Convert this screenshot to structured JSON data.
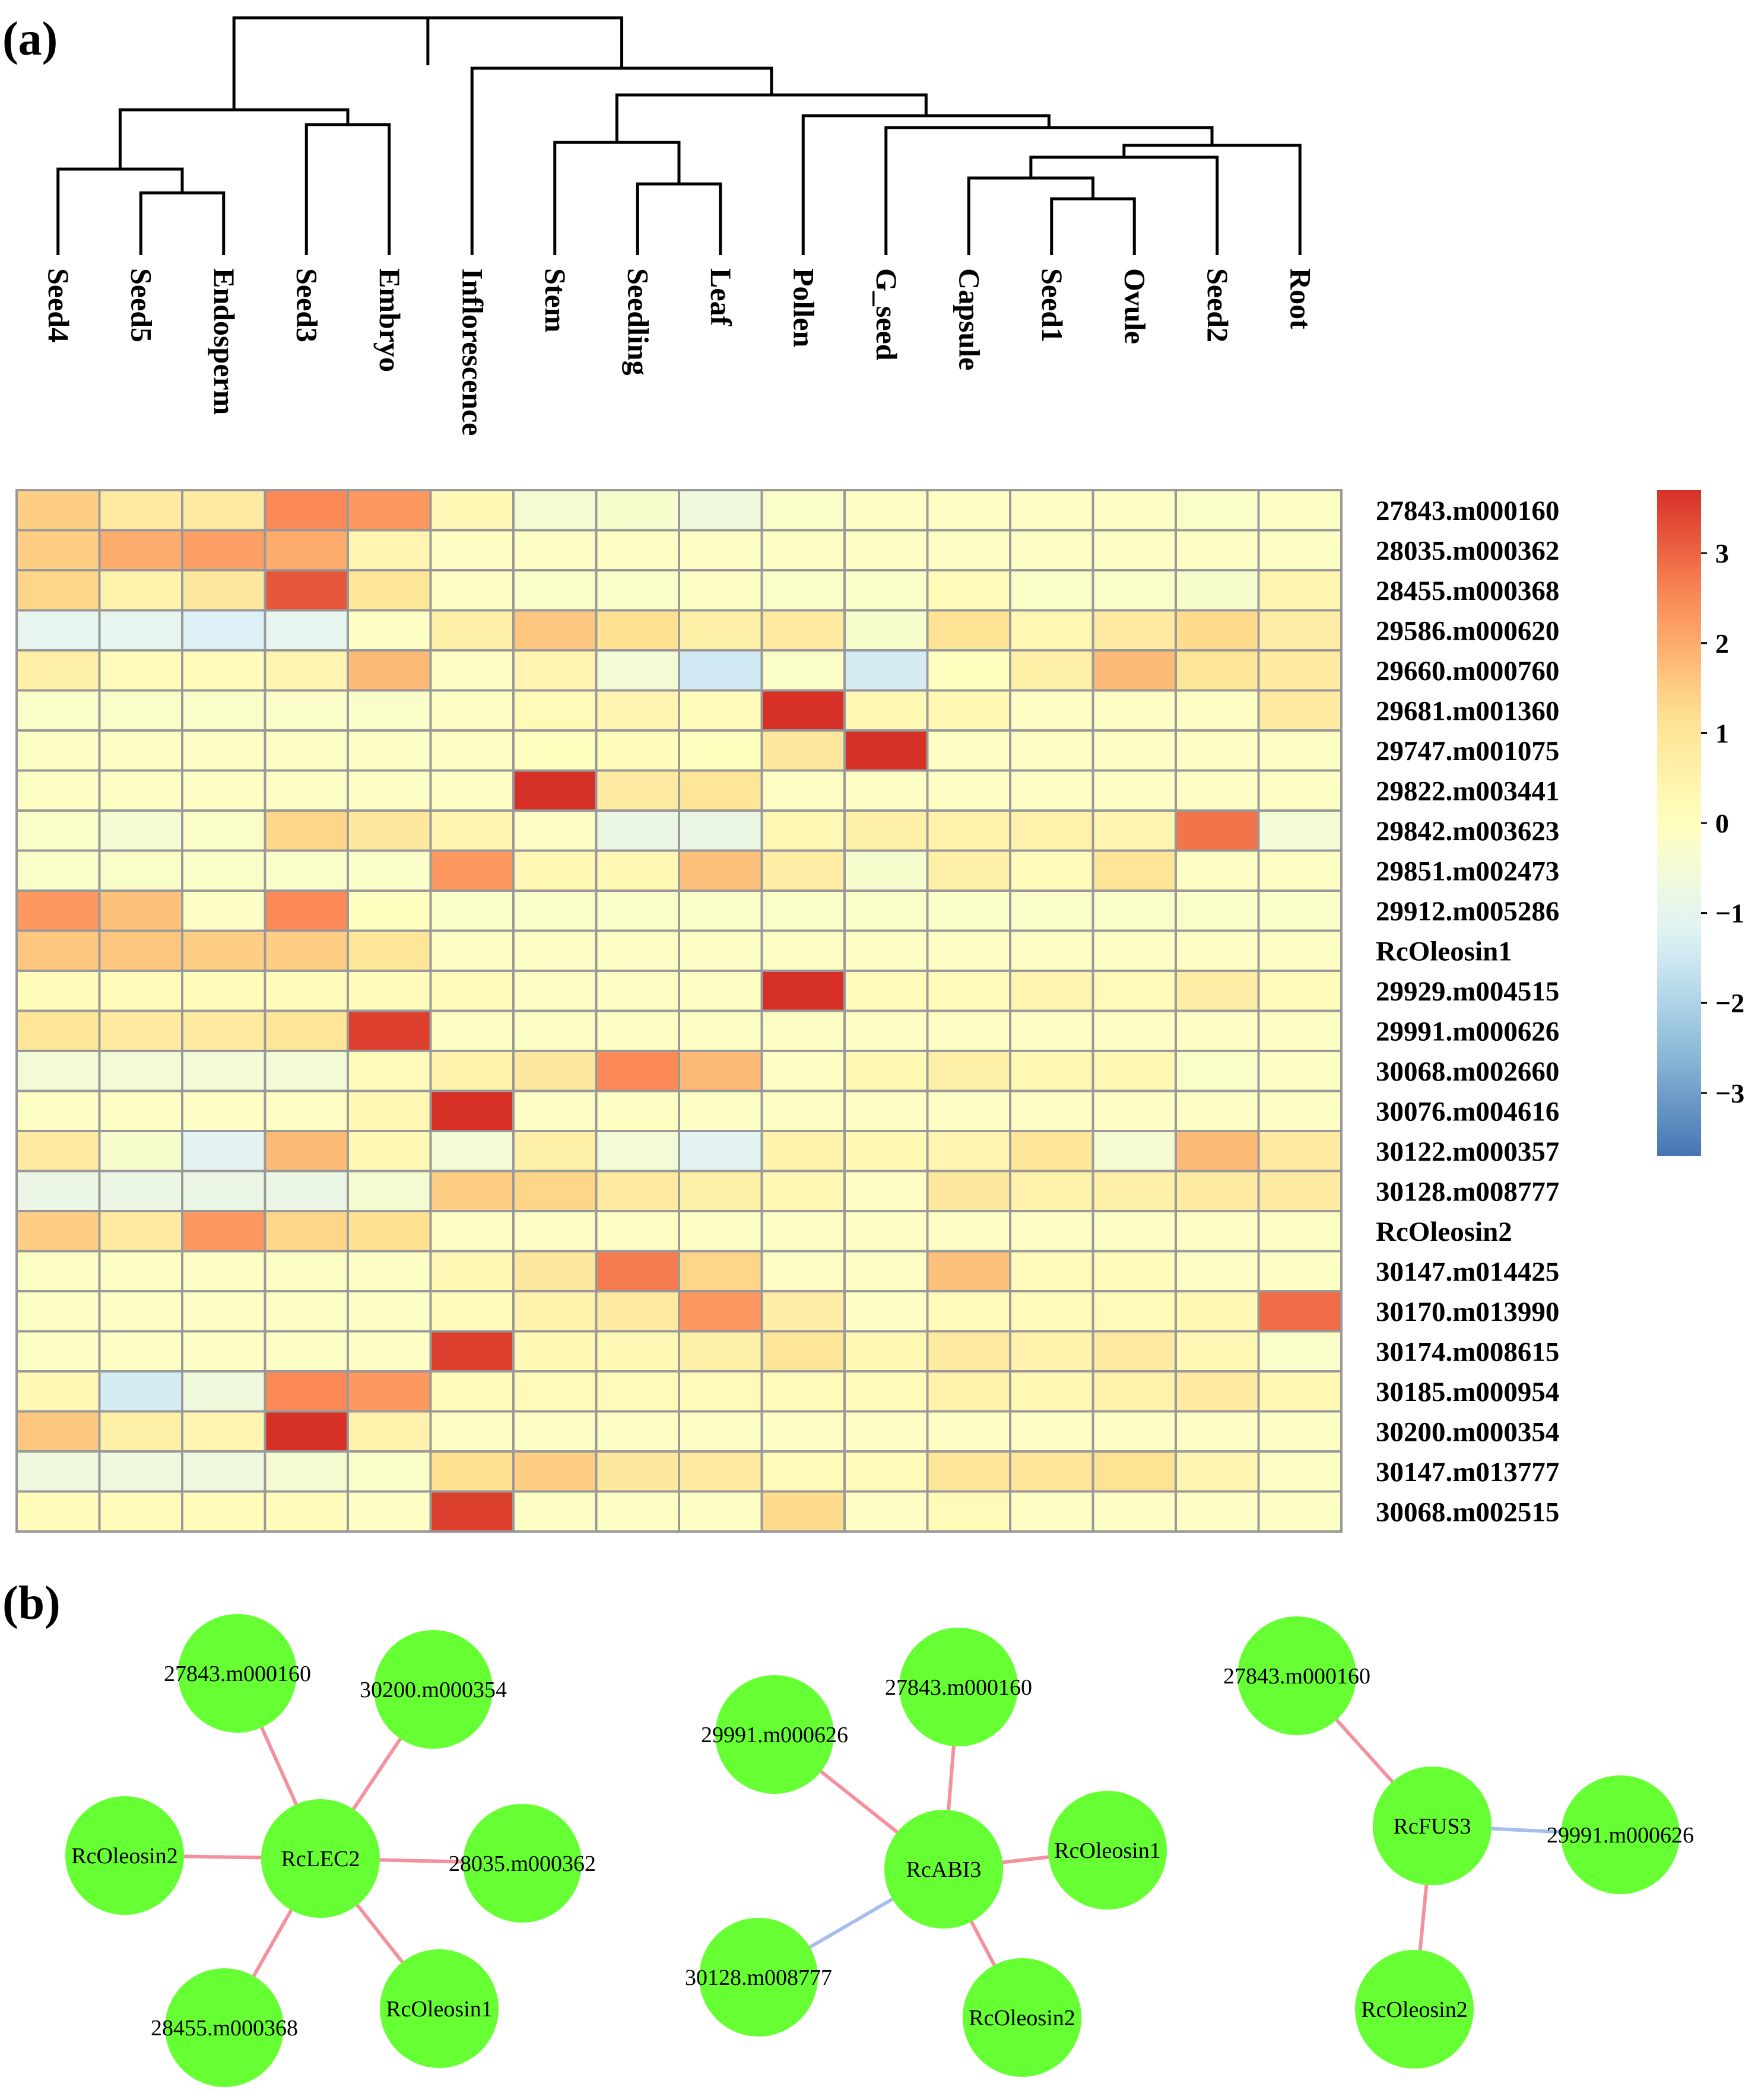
{
  "panel_labels": {
    "a": "(a)",
    "b": "(b)"
  },
  "chart_data": {
    "type": "heatmap",
    "title": "",
    "columns": [
      "Seed4",
      "Seed5",
      "Endosperm",
      "Seed3",
      "Embryo",
      "Inflorescence",
      "Stem",
      "Seedling",
      "Leaf",
      "Pollen",
      "G_seed",
      "Capsule",
      "Seed1",
      "Ovule",
      "Seed2",
      "Root"
    ],
    "rows": [
      "27843.m000160",
      "28035.m000362",
      "28455.m000368",
      "29586.m000620",
      "29660.m000760",
      "29681.m001360",
      "29747.m001075",
      "29822.m003441",
      "29842.m003623",
      "29851.m002473",
      "29912.m005286",
      "RcOleosin1",
      "29929.m004515",
      "29991.m000626",
      "30068.m002660",
      "30076.m004616",
      "30122.m000357",
      "30128.m008777",
      "RcOleosin2",
      "30147.m014425",
      "30170.m013990",
      "30174.m008615",
      "30185.m000954",
      "30200.m000354",
      "30147.m013777",
      "30068.m002515"
    ],
    "values": [
      [
        1.5,
        0.8,
        0.8,
        2.5,
        2.3,
        0.3,
        -0.4,
        -0.3,
        -0.6,
        -0.2,
        -0.1,
        -0.1,
        -0.1,
        -0.1,
        -0.2,
        -0.1
      ],
      [
        1.5,
        2.0,
        2.2,
        2.0,
        0.4,
        -0.1,
        -0.1,
        -0.1,
        -0.1,
        -0.1,
        -0.1,
        -0.1,
        -0.1,
        -0.1,
        -0.1,
        -0.1
      ],
      [
        1.4,
        0.5,
        0.9,
        3.2,
        1.0,
        -0.1,
        -0.2,
        -0.2,
        -0.1,
        -0.2,
        -0.2,
        0.2,
        -0.2,
        -0.2,
        -0.3,
        0.4
      ],
      [
        -1.0,
        -1.0,
        -1.3,
        -1.0,
        -0.1,
        0.6,
        1.6,
        1.2,
        0.6,
        0.8,
        -0.3,
        1.1,
        0.3,
        0.8,
        1.3,
        0.7
      ],
      [
        0.6,
        0.1,
        0.1,
        0.4,
        1.8,
        -0.1,
        0.4,
        -0.5,
        -1.5,
        -0.2,
        -1.4,
        0.0,
        0.6,
        1.8,
        1.0,
        0.8
      ],
      [
        -0.2,
        -0.2,
        -0.2,
        -0.2,
        -0.2,
        -0.1,
        0.2,
        0.4,
        0.1,
        3.7,
        0.3,
        0.3,
        -0.1,
        -0.1,
        -0.1,
        0.8
      ],
      [
        -0.1,
        -0.1,
        -0.1,
        -0.1,
        -0.1,
        -0.1,
        0.0,
        0.1,
        0.0,
        0.9,
        3.7,
        -0.1,
        -0.1,
        -0.1,
        -0.1,
        -0.1
      ],
      [
        -0.1,
        -0.1,
        -0.1,
        -0.1,
        -0.1,
        -0.1,
        3.7,
        0.8,
        1.0,
        -0.1,
        -0.1,
        -0.1,
        -0.1,
        -0.1,
        -0.1,
        -0.1
      ],
      [
        -0.2,
        -0.4,
        -0.2,
        1.4,
        0.9,
        0.4,
        -0.1,
        -0.8,
        -0.8,
        0.3,
        0.6,
        0.5,
        0.5,
        0.4,
        2.8,
        -0.5
      ],
      [
        -0.2,
        -0.2,
        -0.2,
        -0.2,
        -0.2,
        2.3,
        0.3,
        0.3,
        1.7,
        0.7,
        -0.3,
        0.6,
        0.1,
        1.0,
        -0.1,
        -0.1
      ],
      [
        2.3,
        1.7,
        -0.1,
        2.5,
        0.0,
        -0.2,
        -0.2,
        -0.2,
        -0.2,
        -0.2,
        -0.2,
        -0.2,
        -0.2,
        -0.2,
        -0.2,
        -0.2
      ],
      [
        1.6,
        1.6,
        1.5,
        1.5,
        1.0,
        -0.1,
        -0.1,
        -0.1,
        -0.1,
        -0.1,
        -0.1,
        -0.1,
        -0.1,
        -0.1,
        -0.1,
        -0.1
      ],
      [
        0.1,
        0.1,
        0.1,
        0.1,
        0.1,
        0.1,
        -0.1,
        -0.1,
        -0.1,
        3.7,
        0.1,
        0.1,
        0.4,
        0.2,
        0.7,
        0.1
      ],
      [
        1.0,
        0.8,
        0.8,
        1.0,
        3.5,
        -0.1,
        -0.1,
        -0.1,
        -0.1,
        -0.1,
        -0.1,
        -0.1,
        -0.1,
        -0.1,
        -0.1,
        -0.1
      ],
      [
        -0.5,
        -0.5,
        -0.5,
        -0.5,
        0.2,
        0.5,
        0.9,
        2.5,
        1.8,
        -0.1,
        0.3,
        0.6,
        0.3,
        0.3,
        -0.2,
        -0.1
      ],
      [
        -0.1,
        -0.1,
        -0.1,
        -0.1,
        0.3,
        3.9,
        -0.1,
        -0.1,
        -0.1,
        -0.1,
        -0.1,
        -0.1,
        -0.1,
        -0.1,
        -0.1,
        -0.1
      ],
      [
        0.8,
        -0.3,
        -1.1,
        1.8,
        0.3,
        -0.5,
        0.6,
        -0.5,
        -1.1,
        0.5,
        0.3,
        0.4,
        1.0,
        -0.4,
        1.8,
        0.8
      ],
      [
        -0.8,
        -0.8,
        -0.8,
        -0.8,
        -0.4,
        1.5,
        1.4,
        0.8,
        0.6,
        0.3,
        -0.1,
        0.9,
        0.5,
        0.6,
        0.8,
        0.8
      ],
      [
        1.5,
        0.8,
        2.3,
        1.4,
        1.2,
        -0.1,
        -0.1,
        -0.1,
        -0.1,
        -0.1,
        -0.1,
        -0.1,
        -0.1,
        -0.1,
        -0.1,
        -0.1
      ],
      [
        -0.1,
        -0.1,
        -0.1,
        -0.1,
        -0.1,
        0.3,
        0.9,
        2.7,
        1.4,
        -0.1,
        -0.1,
        1.7,
        0.1,
        0.1,
        -0.1,
        -0.1
      ],
      [
        -0.1,
        -0.1,
        -0.1,
        -0.1,
        -0.1,
        0.1,
        0.5,
        0.8,
        2.3,
        0.7,
        -0.1,
        0.2,
        0.1,
        0.2,
        0.3,
        2.9
      ],
      [
        -0.1,
        -0.1,
        -0.1,
        -0.1,
        -0.1,
        3.5,
        0.3,
        0.3,
        0.6,
        1.0,
        0.3,
        0.8,
        0.5,
        0.8,
        0.3,
        -0.2
      ],
      [
        0.3,
        -1.4,
        -0.6,
        2.5,
        2.3,
        0.2,
        0.2,
        0.2,
        0.2,
        0.2,
        0.2,
        0.5,
        0.3,
        0.5,
        0.8,
        0.3
      ],
      [
        1.6,
        0.6,
        0.4,
        3.7,
        0.5,
        -0.1,
        -0.1,
        -0.1,
        -0.1,
        -0.1,
        -0.1,
        -0.1,
        -0.1,
        -0.1,
        -0.1,
        -0.1
      ],
      [
        -0.7,
        -0.7,
        -0.7,
        -0.4,
        -0.2,
        1.2,
        1.5,
        0.9,
        0.8,
        0.2,
        0.2,
        1.0,
        1.0,
        1.1,
        0.4,
        -0.1
      ],
      [
        0.1,
        0.1,
        0.1,
        0.1,
        -0.1,
        3.5,
        -0.1,
        -0.1,
        -0.1,
        1.3,
        -0.1,
        0.2,
        -0.1,
        -0.1,
        -0.1,
        -0.1
      ]
    ],
    "color_scale": {
      "range": [
        -3.7,
        3.7
      ],
      "ticks": [
        3,
        2,
        1,
        0,
        -1,
        -2,
        -3
      ],
      "tick_labels": [
        "3",
        "2",
        "1",
        "0",
        "−1",
        "−2",
        "−3"
      ],
      "colors": [
        "#4575B4",
        "#91BFDB",
        "#E0F3F8",
        "#FFFFBF",
        "#FEE090",
        "#FC8D59",
        "#D73027"
      ]
    },
    "dendrogram": "column clustering"
  },
  "networks": [
    {
      "center": "RcLEC2",
      "neighbors": [
        {
          "label": "27843.m000160",
          "edge": "positive"
        },
        {
          "label": "30200.m000354",
          "edge": "positive"
        },
        {
          "label": "RcOleosin2",
          "edge": "positive"
        },
        {
          "label": "28035.m000362",
          "edge": "positive"
        },
        {
          "label": "28455.m000368",
          "edge": "positive"
        },
        {
          "label": "RcOleosin1",
          "edge": "positive"
        }
      ]
    },
    {
      "center": "RcABI3",
      "neighbors": [
        {
          "label": "29991.m000626",
          "edge": "positive"
        },
        {
          "label": "27843.m000160",
          "edge": "positive"
        },
        {
          "label": "RcOleosin1",
          "edge": "positive"
        },
        {
          "label": "30128.m008777",
          "edge": "negative"
        },
        {
          "label": "RcOleosin2",
          "edge": "positive"
        }
      ]
    },
    {
      "center": "RcFUS3",
      "neighbors": [
        {
          "label": "27843.m000160",
          "edge": "positive"
        },
        {
          "label": "29991.m000626",
          "edge": "negative"
        },
        {
          "label": "RcOleosin2",
          "edge": "positive"
        }
      ]
    }
  ],
  "colors": {
    "node_fill": "#66FF33",
    "edge_positive": "#F4919F",
    "edge_negative": "#A7BDEE",
    "grid_line": "#999999"
  }
}
